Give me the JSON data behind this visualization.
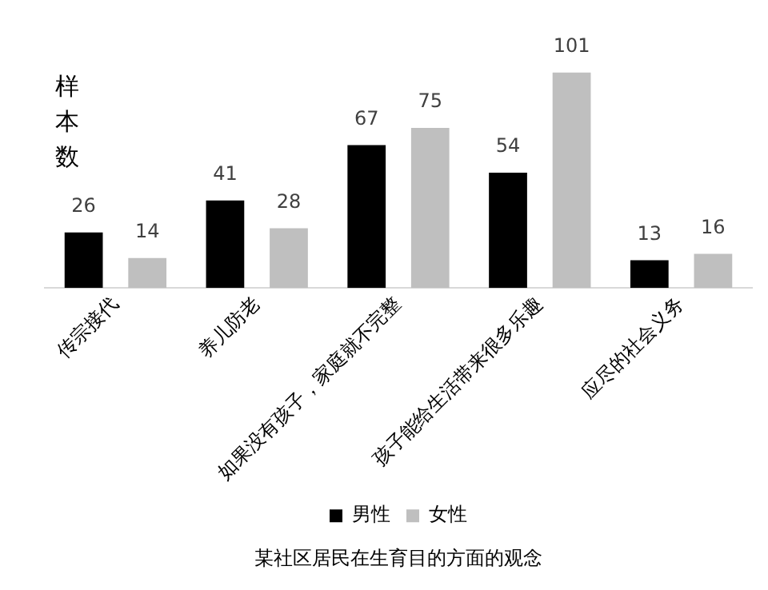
{
  "chart_data": {
    "type": "bar",
    "title": "某社区居民在生育目的方面的观念",
    "ylabel": "样本数",
    "categories": [
      "传宗接代",
      "养儿防老",
      "如果没有孩子，家庭就不完整",
      "孩子能给生活带来很多乐趣",
      "应尽的社会义务"
    ],
    "series": [
      {
        "name": "男性",
        "color": "#000000",
        "values": [
          26,
          41,
          67,
          54,
          13
        ]
      },
      {
        "name": "女性",
        "color": "#bfbfbf",
        "values": [
          14,
          28,
          75,
          101,
          16
        ]
      }
    ],
    "data_labels": true,
    "legend": "bottom",
    "grid": false
  }
}
